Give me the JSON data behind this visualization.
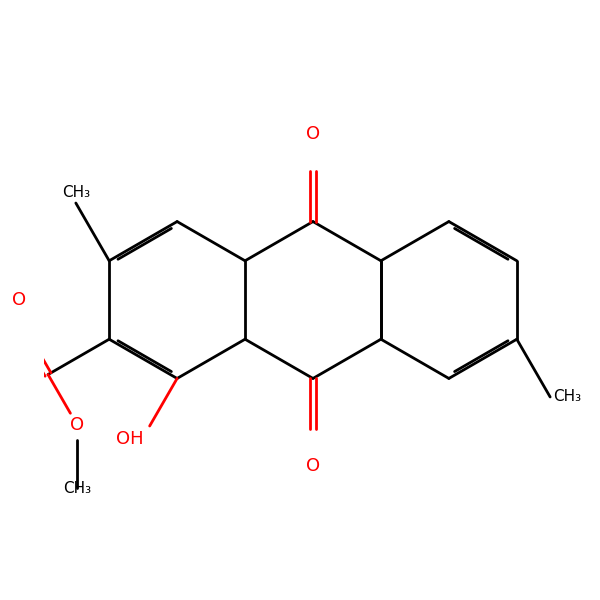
{
  "bg_color": "#ffffff",
  "bond_color": "#000000",
  "heteroatom_color": "#ff0000",
  "lw": 2.0,
  "dbo": 0.06,
  "dbo_ring": 0.055,
  "font_size": 13,
  "font_size_small": 11,
  "fig_size": [
    6.0,
    6.0
  ],
  "dpi": 100,
  "xlim": [
    -4.8,
    4.8
  ],
  "ylim": [
    -4.3,
    4.3
  ]
}
